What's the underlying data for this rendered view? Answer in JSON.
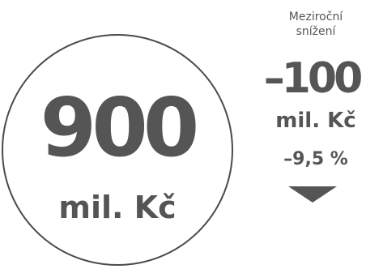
{
  "main": {
    "value": "900",
    "unit": "mil. Kč"
  },
  "year_over_year": {
    "label_line1": "Meziroční",
    "label_line2": "snížení",
    "change_value": "–100",
    "change_unit": "mil. Kč",
    "change_percent": "–9,5 %",
    "direction_icon": "down-triangle-icon"
  },
  "colors": {
    "text": "#555555",
    "circle_border": "#4a4a4a",
    "background": "#ffffff"
  }
}
